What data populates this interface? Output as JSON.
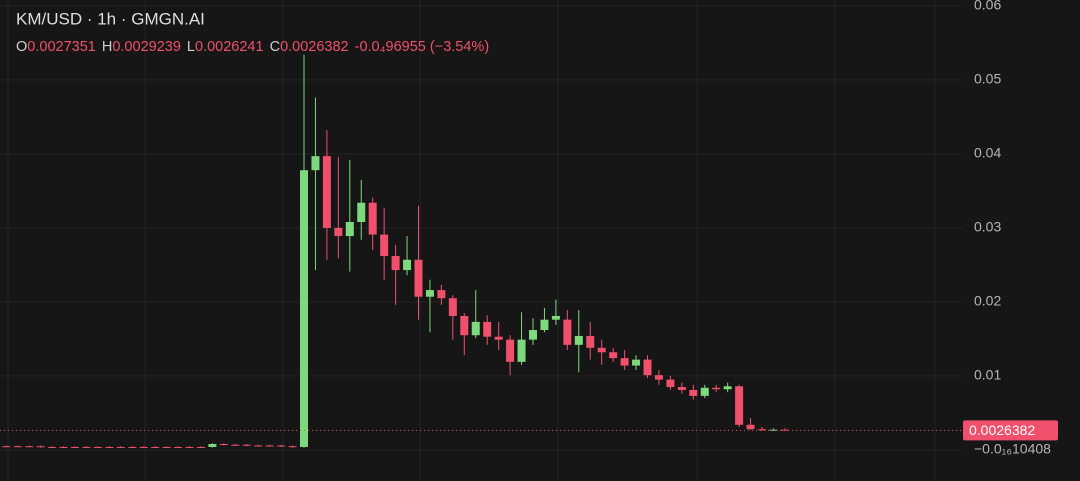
{
  "chart_data": {
    "type": "candlestick",
    "title": "KM/USD · 1h · GMGN.AI",
    "ohlc_letters": [
      "O",
      "H",
      "L",
      "C"
    ],
    "change": "-0.0₄96955",
    "change_percent": "(−3.54%)",
    "up_color": "#7dd87e",
    "down_color": "#f0506c",
    "ylim": [
      -0.0042,
      0.0608
    ],
    "yticks": [
      {
        "value": -1.0408e-17,
        "label": "−0.0₁₆10408"
      },
      0.01,
      0.02,
      0.03,
      0.04,
      0.05,
      0.06
    ],
    "grid": true,
    "candles": {
      "open": [
        0.0005,
        0.0005,
        0.0005,
        0.0005,
        0.0004,
        0.0004,
        0.0004,
        0.0004,
        0.0004,
        0.0004,
        0.0004,
        0.0004,
        0.0004,
        0.0004,
        0.0004,
        0.0004,
        0.0004,
        0.0004,
        0.0004,
        0.0008,
        0.0007,
        0.0007,
        0.0006,
        0.0006,
        0.0006,
        0.0005,
        0.0004,
        0.0378,
        0.0397,
        0.03,
        0.0289,
        0.0308,
        0.0334,
        0.0291,
        0.0262,
        0.0243,
        0.0257,
        0.0207,
        0.0216,
        0.0205,
        0.0181,
        0.0155,
        0.0173,
        0.0153,
        0.0149,
        0.0119,
        0.0149,
        0.0162,
        0.0176,
        0.0176,
        0.0142,
        0.0154,
        0.0138,
        0.0132,
        0.0124,
        0.0114,
        0.0122,
        0.0101,
        0.0095,
        0.0085,
        0.0081,
        0.0073,
        0.0084,
        0.0082,
        0.0086,
        0.0034,
        0.0028,
        0.0027,
        0.0027351
      ],
      "high": [
        0.0006,
        0.0006,
        0.0006,
        0.0006,
        0.0005,
        0.0005,
        0.0005,
        0.0005,
        0.0005,
        0.0005,
        0.0005,
        0.0005,
        0.0005,
        0.0005,
        0.0005,
        0.0005,
        0.0005,
        0.0005,
        0.0009,
        0.0009,
        0.0008,
        0.0008,
        0.0007,
        0.0007,
        0.0007,
        0.0006,
        0.0534,
        0.0476,
        0.0432,
        0.0396,
        0.0392,
        0.0365,
        0.0341,
        0.0327,
        0.0277,
        0.0289,
        0.033,
        0.023,
        0.0223,
        0.0209,
        0.0185,
        0.0216,
        0.0182,
        0.0173,
        0.0155,
        0.0186,
        0.0178,
        0.0192,
        0.0203,
        0.0189,
        0.0189,
        0.0173,
        0.0149,
        0.0138,
        0.0135,
        0.0128,
        0.0128,
        0.0108,
        0.01,
        0.0091,
        0.0088,
        0.0088,
        0.0088,
        0.0091,
        0.0088,
        0.0043,
        0.0031,
        0.0029,
        0.0029239
      ],
      "low": [
        0.0004,
        0.0004,
        0.0004,
        0.0003,
        0.0003,
        0.0003,
        0.0003,
        0.0003,
        0.0003,
        0.0003,
        0.0003,
        0.0003,
        0.0003,
        0.0003,
        0.0003,
        0.0003,
        0.0003,
        0.0003,
        0.0003,
        0.0006,
        0.0006,
        0.0005,
        0.0005,
        0.0005,
        0.0004,
        0.0003,
        0.0003,
        0.0243,
        0.0257,
        0.0259,
        0.0241,
        0.0284,
        0.027,
        0.023,
        0.0196,
        0.0236,
        0.0176,
        0.0159,
        0.0196,
        0.0149,
        0.0128,
        0.0151,
        0.0142,
        0.0135,
        0.0101,
        0.0115,
        0.0142,
        0.0159,
        0.0169,
        0.0135,
        0.0105,
        0.0122,
        0.0115,
        0.0119,
        0.0108,
        0.0108,
        0.0097,
        0.0088,
        0.0081,
        0.0076,
        0.0068,
        0.007,
        0.0078,
        0.0078,
        0.0031,
        0.0027,
        0.0026,
        0.0026,
        0.0026241
      ],
      "close": [
        0.0005,
        0.0005,
        0.0005,
        0.0004,
        0.0004,
        0.0004,
        0.0004,
        0.0004,
        0.0004,
        0.0004,
        0.0004,
        0.0004,
        0.0004,
        0.0004,
        0.0004,
        0.0004,
        0.0004,
        0.0004,
        0.0008,
        0.0007,
        0.0007,
        0.0006,
        0.0006,
        0.0006,
        0.0005,
        0.0004,
        0.0378,
        0.0397,
        0.03,
        0.0289,
        0.0308,
        0.0334,
        0.0291,
        0.0262,
        0.0243,
        0.0257,
        0.0207,
        0.0216,
        0.0205,
        0.0181,
        0.0155,
        0.0173,
        0.0153,
        0.0149,
        0.0119,
        0.0149,
        0.0162,
        0.0176,
        0.0181,
        0.0142,
        0.0154,
        0.0138,
        0.0132,
        0.0124,
        0.0114,
        0.0122,
        0.0101,
        0.0095,
        0.0085,
        0.0081,
        0.0073,
        0.0084,
        0.0082,
        0.0086,
        0.0034,
        0.0028,
        0.0027,
        0.0027351,
        0.0026382
      ]
    }
  }
}
